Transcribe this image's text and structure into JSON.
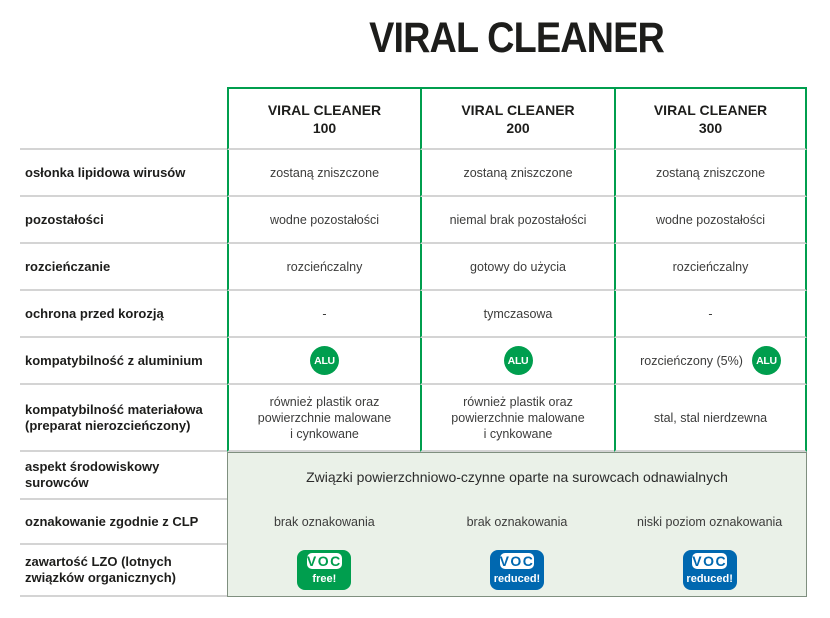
{
  "title": "VIRAL CLEANER",
  "colors": {
    "table_border_green": "#009e4e",
    "divider_gray": "#d4d4d4",
    "eco_panel_background": "#eaf1e8",
    "eco_panel_border": "#7f8f7f",
    "voc_free_green": "#009e4e",
    "voc_reduced_blue": "#0068b0",
    "text_dark": "#1d1d1b"
  },
  "products": [
    "VIRAL CLEANER\n100",
    "VIRAL CLEANER\n200",
    "VIRAL CLEANER\n300"
  ],
  "alu_label": "ALU",
  "rows": [
    {
      "label": "osłonka lipidowa wirusów",
      "values": [
        "zostaną zniszczone",
        "zostaną zniszczone",
        "zostaną zniszczone"
      ]
    },
    {
      "label": "pozostałości",
      "values": [
        "wodne pozostałości",
        "niemal brak pozostałości",
        "wodne pozostałości"
      ]
    },
    {
      "label": "rozcieńczanie",
      "values": [
        "rozcieńczalny",
        "gotowy do użycia",
        "rozcieńczalny"
      ]
    },
    {
      "label": "ochrona przed korozją",
      "values": [
        "-",
        "tymczasowa",
        "-"
      ]
    },
    {
      "label": "kompatybilność z aluminium",
      "values": [
        "",
        "",
        "rozcieńczony (5%)"
      ]
    },
    {
      "label": "kompatybilność materiałowa\n(preparat nierozcieńczony)",
      "values": [
        "również plastik oraz\npowierzchnie malowane\ni cynkowane",
        "również plastik oraz\npowierzchnie malowane\ni cynkowane",
        "stal, stal nierdzewna"
      ]
    }
  ],
  "eco": {
    "labels": [
      "aspekt środowiskowy\nsurowców",
      "oznakowanie zgodnie z CLP",
      "zawartość LZO (lotnych\nzwiązków organicznych)"
    ],
    "spanning_text": "Związki powierzchniowo-czynne oparte na surowcach odnawialnych",
    "clp_values": [
      "brak oznakowania",
      "brak oznakowania",
      "niski poziom oznakowania"
    ],
    "voc_badges": [
      {
        "line1": "VOC",
        "line2": "free!",
        "color": "#009e4e"
      },
      {
        "line1": "VOC",
        "line2": "reduced!",
        "color": "#0068b0"
      },
      {
        "line1": "VOC",
        "line2": "reduced!",
        "color": "#0068b0"
      }
    ]
  }
}
